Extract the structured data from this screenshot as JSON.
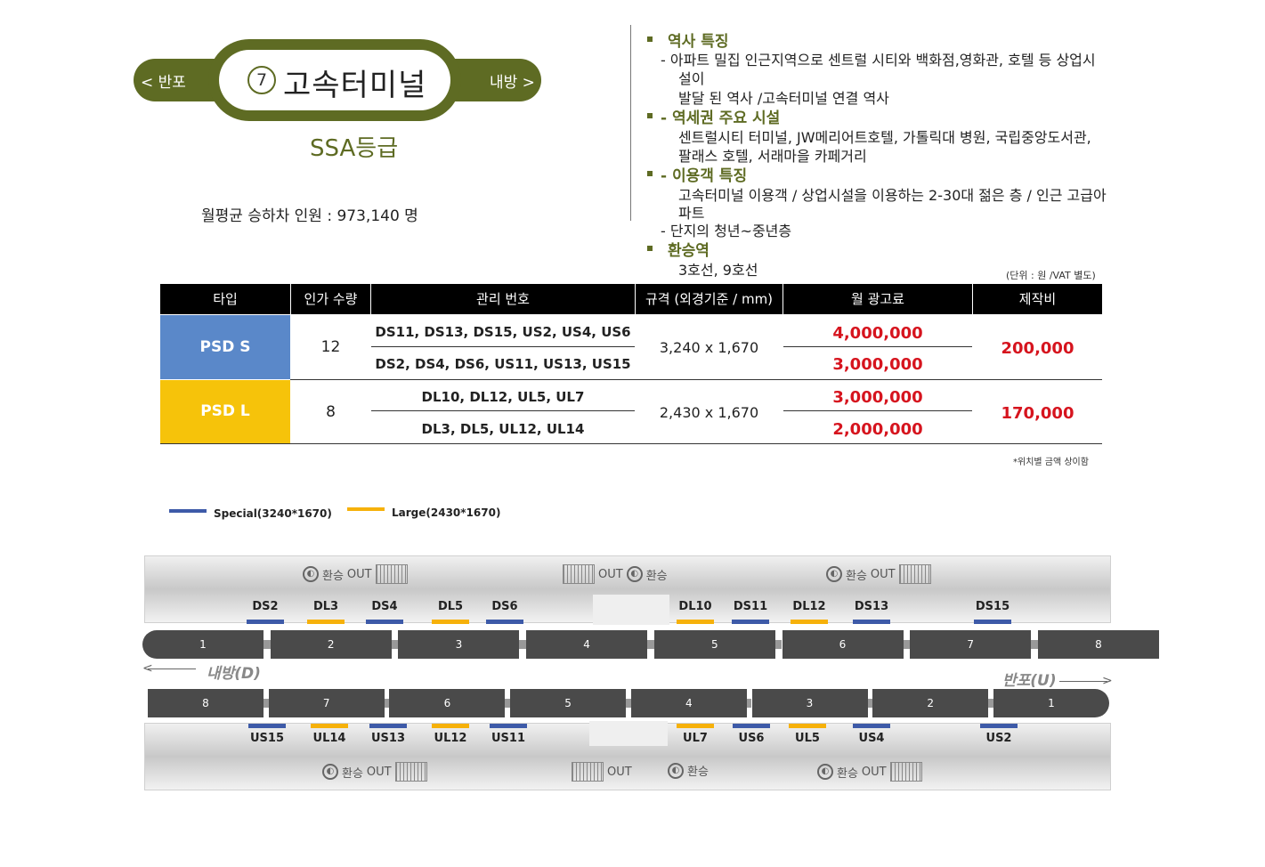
{
  "station": {
    "prev": "< 반포",
    "next": "내방 >",
    "number": "7",
    "name": "고속터미널",
    "grade": "SSA등급",
    "ridership": "월평균  승하차 인원 : 973,140 명"
  },
  "info": {
    "s1_title": "역사 특징",
    "s1_line1": "-   아파트 밀집 인근지역으로 센트럴 시티와 백화점,영화관, 호텔 등 상업시",
    "s1_line2": "설이",
    "s1_line3": "발달 된 역사 /고속터미널 연결 역사",
    "s2_title": "- 역세권 주요 시설",
    "s2_line1": "센트럴시티 터미널, JW메리어트호텔, 가톨릭대 병원, 국립중앙도서관,",
    "s2_line2": "팔래스 호텔, 서래마을 카페거리",
    "s3_title": "- 이용객 특징",
    "s3_line1": "고속터미널 이용객 / 상업시설을 이용하는 2-30대 젊은 층 / 인근 고급아",
    "s3_line2": "파트",
    "s3_line3": "-   단지의 청년~중년층",
    "s4_title": "환승역",
    "s4_line1": "3호선, 9호선"
  },
  "table": {
    "unit_note": "(단위 : 원 /VAT 별도)",
    "headers": [
      "타입",
      "인가 수량",
      "관리 번호",
      "규격 (외경기준 / mm)",
      "월 광고료",
      "제작비"
    ],
    "rows": [
      {
        "type": "PSD S",
        "qty": "12",
        "codes": [
          "DS11, DS13, DS15, US2, US4, US6",
          "DS2, DS4, DS6, US11, US13, US15"
        ],
        "size": "3,240 x 1,670",
        "fees": [
          "4,000,000",
          "3,000,000"
        ],
        "production": "200,000"
      },
      {
        "type": "PSD L",
        "qty": "8",
        "codes": [
          "DL10, DL12, UL5, UL7",
          "DL3, DL5, UL12, UL14"
        ],
        "size": "2,430 x 1,670",
        "fees": [
          "3,000,000",
          "2,000,000"
        ],
        "production": "170,000"
      }
    ],
    "foot_note": "*위치별 금액 상이함"
  },
  "legend": {
    "special": "Special(3240*1670)",
    "large": "Large(2430*1670)",
    "special_color": "#3d5aa8",
    "large_color": "#f6b10a"
  },
  "platform": {
    "transfer": "환승",
    "out": "OUT",
    "top_doors": [
      "DS2",
      "DL3",
      "DS4",
      "DL5",
      "DS6",
      "DL10",
      "DS11",
      "DL12",
      "DS13",
      "DS15"
    ],
    "bottom_doors": [
      "US15",
      "UL14",
      "US13",
      "UL12",
      "US11",
      "UL7",
      "US6",
      "UL5",
      "US4",
      "US2"
    ],
    "top_cars": [
      "1",
      "2",
      "3",
      "4",
      "5",
      "6",
      "7",
      "8"
    ],
    "bottom_cars": [
      "8",
      "7",
      "6",
      "5",
      "4",
      "3",
      "2",
      "1"
    ],
    "dir_left": "내방(D)",
    "dir_right": "반포(U)"
  }
}
